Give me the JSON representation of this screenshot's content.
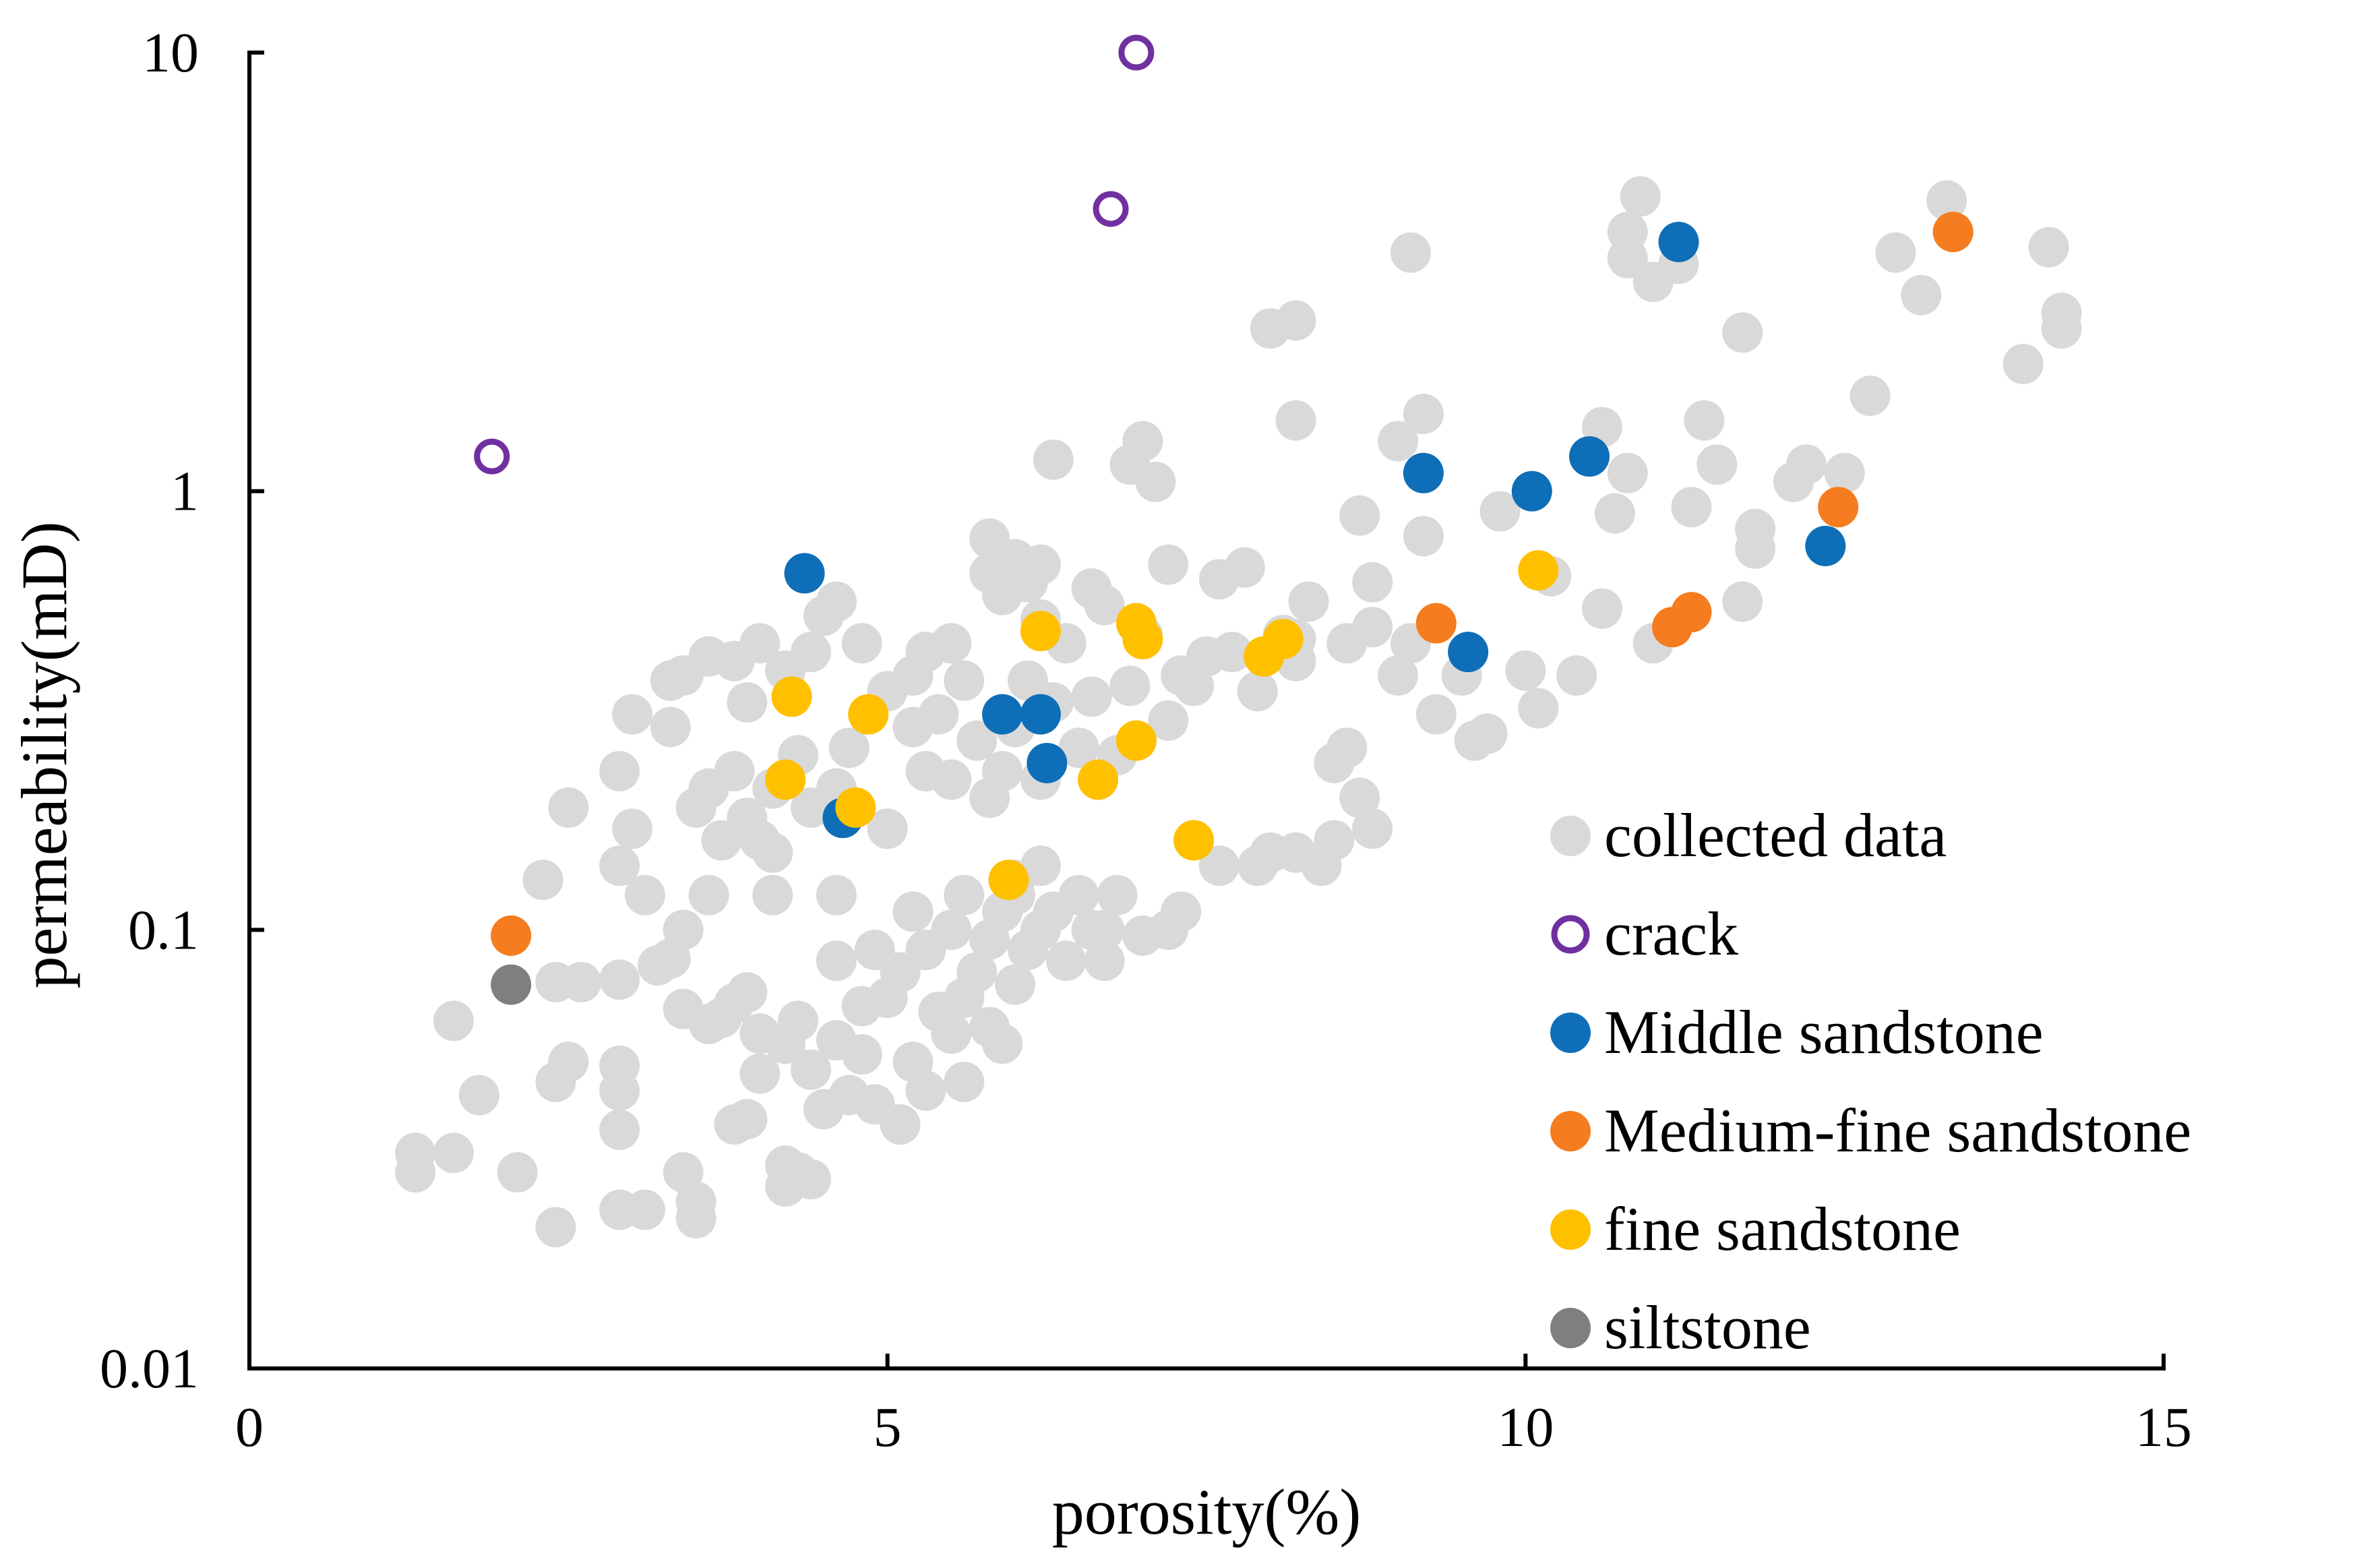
{
  "chart_data": {
    "type": "scatter",
    "title": "",
    "xlabel": "porosity(%)",
    "ylabel": "permeability(mD)",
    "xlim": [
      0,
      15
    ],
    "ylim": [
      0.01,
      10
    ],
    "yscale": "log",
    "x_ticks": [
      0,
      5,
      10,
      15
    ],
    "x_tick_labels": [
      "0",
      "5",
      "10",
      "15"
    ],
    "y_ticks": [
      0.01,
      0.1,
      1,
      10
    ],
    "y_tick_labels": [
      "0.01",
      "0.1",
      "1",
      "10"
    ],
    "grid": false,
    "legend_position": "bottom-right",
    "series": [
      {
        "name": "collected data",
        "color": "#d9d9d9",
        "marker": "filled-circle",
        "points": [
          [
            1.3,
            0.031
          ],
          [
            1.3,
            0.028
          ],
          [
            1.6,
            0.031
          ],
          [
            1.6,
            0.062
          ],
          [
            1.8,
            0.042
          ],
          [
            2.1,
            0.028
          ],
          [
            2.4,
            0.021
          ],
          [
            2.4,
            0.045
          ],
          [
            2.5,
            0.05
          ],
          [
            2.4,
            0.076
          ],
          [
            2.6,
            0.076
          ],
          [
            2.9,
            0.077
          ],
          [
            2.9,
            0.035
          ],
          [
            2.9,
            0.043
          ],
          [
            2.9,
            0.049
          ],
          [
            2.9,
            0.023
          ],
          [
            3.1,
            0.023
          ],
          [
            3.2,
            0.083
          ],
          [
            3.3,
            0.086
          ],
          [
            3.4,
            0.1
          ],
          [
            3.4,
            0.066
          ],
          [
            3.4,
            0.028
          ],
          [
            3.5,
            0.022
          ],
          [
            3.5,
            0.024
          ],
          [
            3.6,
            0.061
          ],
          [
            3.6,
            0.12
          ],
          [
            3.7,
            0.063
          ],
          [
            3.8,
            0.036
          ],
          [
            3.8,
            0.068
          ],
          [
            3.9,
            0.037
          ],
          [
            3.9,
            0.072
          ],
          [
            4.0,
            0.058
          ],
          [
            4.0,
            0.047
          ],
          [
            4.1,
            0.12
          ],
          [
            4.1,
            0.15
          ],
          [
            4.2,
            0.029
          ],
          [
            4.2,
            0.055
          ],
          [
            4.2,
            0.026
          ],
          [
            4.3,
            0.028
          ],
          [
            4.3,
            0.062
          ],
          [
            4.4,
            0.027
          ],
          [
            4.4,
            0.048
          ],
          [
            4.5,
            0.039
          ],
          [
            4.6,
            0.056
          ],
          [
            4.6,
            0.085
          ],
          [
            4.6,
            0.12
          ],
          [
            4.7,
            0.042
          ],
          [
            4.8,
            0.067
          ],
          [
            4.8,
            0.052
          ],
          [
            4.9,
            0.09
          ],
          [
            4.9,
            0.04
          ],
          [
            5.0,
            0.07
          ],
          [
            5.1,
            0.036
          ],
          [
            5.1,
            0.08
          ],
          [
            5.2,
            0.05
          ],
          [
            5.2,
            0.11
          ],
          [
            5.3,
            0.043
          ],
          [
            5.3,
            0.09
          ],
          [
            5.4,
            0.065
          ],
          [
            5.5,
            0.058
          ],
          [
            5.5,
            0.1
          ],
          [
            5.6,
            0.12
          ],
          [
            5.6,
            0.07
          ],
          [
            5.6,
            0.045
          ],
          [
            5.7,
            0.08
          ],
          [
            5.8,
            0.095
          ],
          [
            5.8,
            0.06
          ],
          [
            5.9,
            0.11
          ],
          [
            5.9,
            0.055
          ],
          [
            6.0,
            0.12
          ],
          [
            6.0,
            0.075
          ],
          [
            6.0,
            0.13
          ],
          [
            6.1,
            0.09
          ],
          [
            6.2,
            0.1
          ],
          [
            6.2,
            0.14
          ],
          [
            6.3,
            0.11
          ],
          [
            6.4,
            0.085
          ],
          [
            6.5,
            0.12
          ],
          [
            6.6,
            0.1
          ],
          [
            6.7,
            0.1
          ],
          [
            6.7,
            0.085
          ],
          [
            6.8,
            0.12
          ],
          [
            7.0,
            0.097
          ],
          [
            7.2,
            0.1
          ],
          [
            7.3,
            0.11
          ],
          [
            7.6,
            0.14
          ],
          [
            7.9,
            0.14
          ],
          [
            8.0,
            0.15
          ],
          [
            8.2,
            0.15
          ],
          [
            8.4,
            0.14
          ],
          [
            8.5,
            0.16
          ],
          [
            8.7,
            0.2
          ],
          [
            8.8,
            0.17
          ],
          [
            2.3,
            0.13
          ],
          [
            2.5,
            0.19
          ],
          [
            2.9,
            0.14
          ],
          [
            2.9,
            0.23
          ],
          [
            3.0,
            0.17
          ],
          [
            3.1,
            0.12
          ],
          [
            3.3,
            0.29
          ],
          [
            3.5,
            0.19
          ],
          [
            3.6,
            0.21
          ],
          [
            3.7,
            0.16
          ],
          [
            3.8,
            0.23
          ],
          [
            3.9,
            0.18
          ],
          [
            4.0,
            0.16
          ],
          [
            4.1,
            0.21
          ],
          [
            4.3,
            0.25
          ],
          [
            4.4,
            0.19
          ],
          [
            4.6,
            0.21
          ],
          [
            4.7,
            0.26
          ],
          [
            5.0,
            0.17
          ],
          [
            5.2,
            0.29
          ],
          [
            5.3,
            0.23
          ],
          [
            5.4,
            0.31
          ],
          [
            5.5,
            0.22
          ],
          [
            5.6,
            0.37
          ],
          [
            5.7,
            0.27
          ],
          [
            5.8,
            0.2
          ],
          [
            5.9,
            0.23
          ],
          [
            6.0,
            0.29
          ],
          [
            6.1,
            0.37
          ],
          [
            6.2,
            0.22
          ],
          [
            6.3,
            0.33
          ],
          [
            6.4,
            0.45
          ],
          [
            6.5,
            0.26
          ],
          [
            6.6,
            0.34
          ],
          [
            6.7,
            0.55
          ],
          [
            6.8,
            0.25
          ],
          [
            6.9,
            0.36
          ],
          [
            7.0,
            0.47
          ],
          [
            7.2,
            0.3
          ],
          [
            7.3,
            0.38
          ],
          [
            7.4,
            0.36
          ],
          [
            7.5,
            0.42
          ],
          [
            7.7,
            0.43
          ],
          [
            7.9,
            0.35
          ],
          [
            8.1,
            0.47
          ],
          [
            8.2,
            0.46
          ],
          [
            8.5,
            0.24
          ],
          [
            8.6,
            0.26
          ],
          [
            8.8,
            0.49
          ],
          [
            3.0,
            0.31
          ],
          [
            3.3,
            0.37
          ],
          [
            3.4,
            0.38
          ],
          [
            3.6,
            0.42
          ],
          [
            3.8,
            0.41
          ],
          [
            3.9,
            0.33
          ],
          [
            4.0,
            0.45
          ],
          [
            4.2,
            0.39
          ],
          [
            4.4,
            0.43
          ],
          [
            4.5,
            0.52
          ],
          [
            4.6,
            0.56
          ],
          [
            4.8,
            0.45
          ],
          [
            5.0,
            0.35
          ],
          [
            5.2,
            0.38
          ],
          [
            5.3,
            0.43
          ],
          [
            5.5,
            0.45
          ],
          [
            5.8,
            0.78
          ],
          [
            5.8,
            0.65
          ],
          [
            5.9,
            0.58
          ],
          [
            6.0,
            0.7
          ],
          [
            6.1,
            0.62
          ],
          [
            6.2,
            0.51
          ],
          [
            6.2,
            0.68
          ],
          [
            6.3,
            1.18
          ],
          [
            6.6,
            0.6
          ],
          [
            6.9,
            1.15
          ],
          [
            7.0,
            1.3
          ],
          [
            7.1,
            1.05
          ],
          [
            7.2,
            0.68
          ],
          [
            7.6,
            0.63
          ],
          [
            7.8,
            0.67
          ],
          [
            8.2,
            0.41
          ],
          [
            8.3,
            0.56
          ],
          [
            8.6,
            0.45
          ],
          [
            8.7,
            0.88
          ],
          [
            8.8,
            0.62
          ],
          [
            9.0,
            1.3
          ],
          [
            9.0,
            0.38
          ],
          [
            9.1,
            0.45
          ],
          [
            9.2,
            0.79
          ],
          [
            9.2,
            1.5
          ],
          [
            9.3,
            0.31
          ],
          [
            9.5,
            0.38
          ],
          [
            9.6,
            0.27
          ],
          [
            9.7,
            0.28
          ],
          [
            9.8,
            0.9
          ],
          [
            10.0,
            0.39
          ],
          [
            10.1,
            0.32
          ],
          [
            10.2,
            0.64
          ],
          [
            10.4,
            0.38
          ],
          [
            10.6,
            0.54
          ],
          [
            10.7,
            0.89
          ],
          [
            10.8,
            1.1
          ],
          [
            11.0,
            0.45
          ],
          [
            11.3,
            0.92
          ],
          [
            11.4,
            1.45
          ],
          [
            11.5,
            1.15
          ],
          [
            11.7,
            0.56
          ],
          [
            11.8,
            0.74
          ],
          [
            11.8,
            0.82
          ],
          [
            12.1,
            1.05
          ],
          [
            12.2,
            1.15
          ],
          [
            12.5,
            1.1
          ],
          [
            12.7,
            1.65
          ],
          [
            8.0,
            2.35
          ],
          [
            8.2,
            2.45
          ],
          [
            8.2,
            1.45
          ],
          [
            9.1,
            3.5
          ],
          [
            10.6,
            1.4
          ],
          [
            10.8,
            3.4
          ],
          [
            10.8,
            3.9
          ],
          [
            10.9,
            4.7
          ],
          [
            11.0,
            3.0
          ],
          [
            11.2,
            3.3
          ],
          [
            11.7,
            2.3
          ],
          [
            12.9,
            3.5
          ],
          [
            13.1,
            2.8
          ],
          [
            13.3,
            4.6
          ],
          [
            13.9,
            1.95
          ],
          [
            14.1,
            3.6
          ],
          [
            14.2,
            2.55
          ],
          [
            14.2,
            2.35
          ]
        ]
      },
      {
        "name": "crack",
        "color": "#7030a0",
        "marker": "open-circle",
        "points": [
          [
            1.9,
            1.2
          ],
          [
            6.75,
            4.4
          ],
          [
            6.95,
            10.0
          ]
        ]
      },
      {
        "name": "Middle sandstone",
        "color": "#0e6eb8",
        "marker": "filled-circle",
        "points": [
          [
            4.35,
            0.65
          ],
          [
            4.65,
            0.18
          ],
          [
            5.9,
            0.31
          ],
          [
            6.2,
            0.31
          ],
          [
            6.25,
            0.24
          ],
          [
            9.2,
            1.1
          ],
          [
            9.55,
            0.43
          ],
          [
            10.05,
            1.0
          ],
          [
            10.5,
            1.2
          ],
          [
            11.2,
            3.7
          ],
          [
            12.35,
            0.75
          ]
        ]
      },
      {
        "name": "Medium-fine sandstone",
        "color": "#f57c1f",
        "marker": "filled-circle",
        "points": [
          [
            2.05,
            0.097
          ],
          [
            9.3,
            0.5
          ],
          [
            11.15,
            0.49
          ],
          [
            11.3,
            0.53
          ],
          [
            12.45,
            0.92
          ],
          [
            13.35,
            3.9
          ]
        ]
      },
      {
        "name": "fine sandstone",
        "color": "#ffc000",
        "marker": "filled-circle",
        "points": [
          [
            4.25,
            0.34
          ],
          [
            4.2,
            0.22
          ],
          [
            4.75,
            0.19
          ],
          [
            4.85,
            0.31
          ],
          [
            5.95,
            0.13
          ],
          [
            6.2,
            0.48
          ],
          [
            6.65,
            0.22
          ],
          [
            6.95,
            0.5
          ],
          [
            7.0,
            0.46
          ],
          [
            6.95,
            0.27
          ],
          [
            7.4,
            0.16
          ],
          [
            7.95,
            0.42
          ],
          [
            8.1,
            0.46
          ],
          [
            10.1,
            0.66
          ]
        ]
      },
      {
        "name": "siltstone",
        "color": "#7f7f7f",
        "marker": "filled-circle",
        "points": [
          [
            2.05,
            0.075
          ]
        ]
      }
    ]
  }
}
